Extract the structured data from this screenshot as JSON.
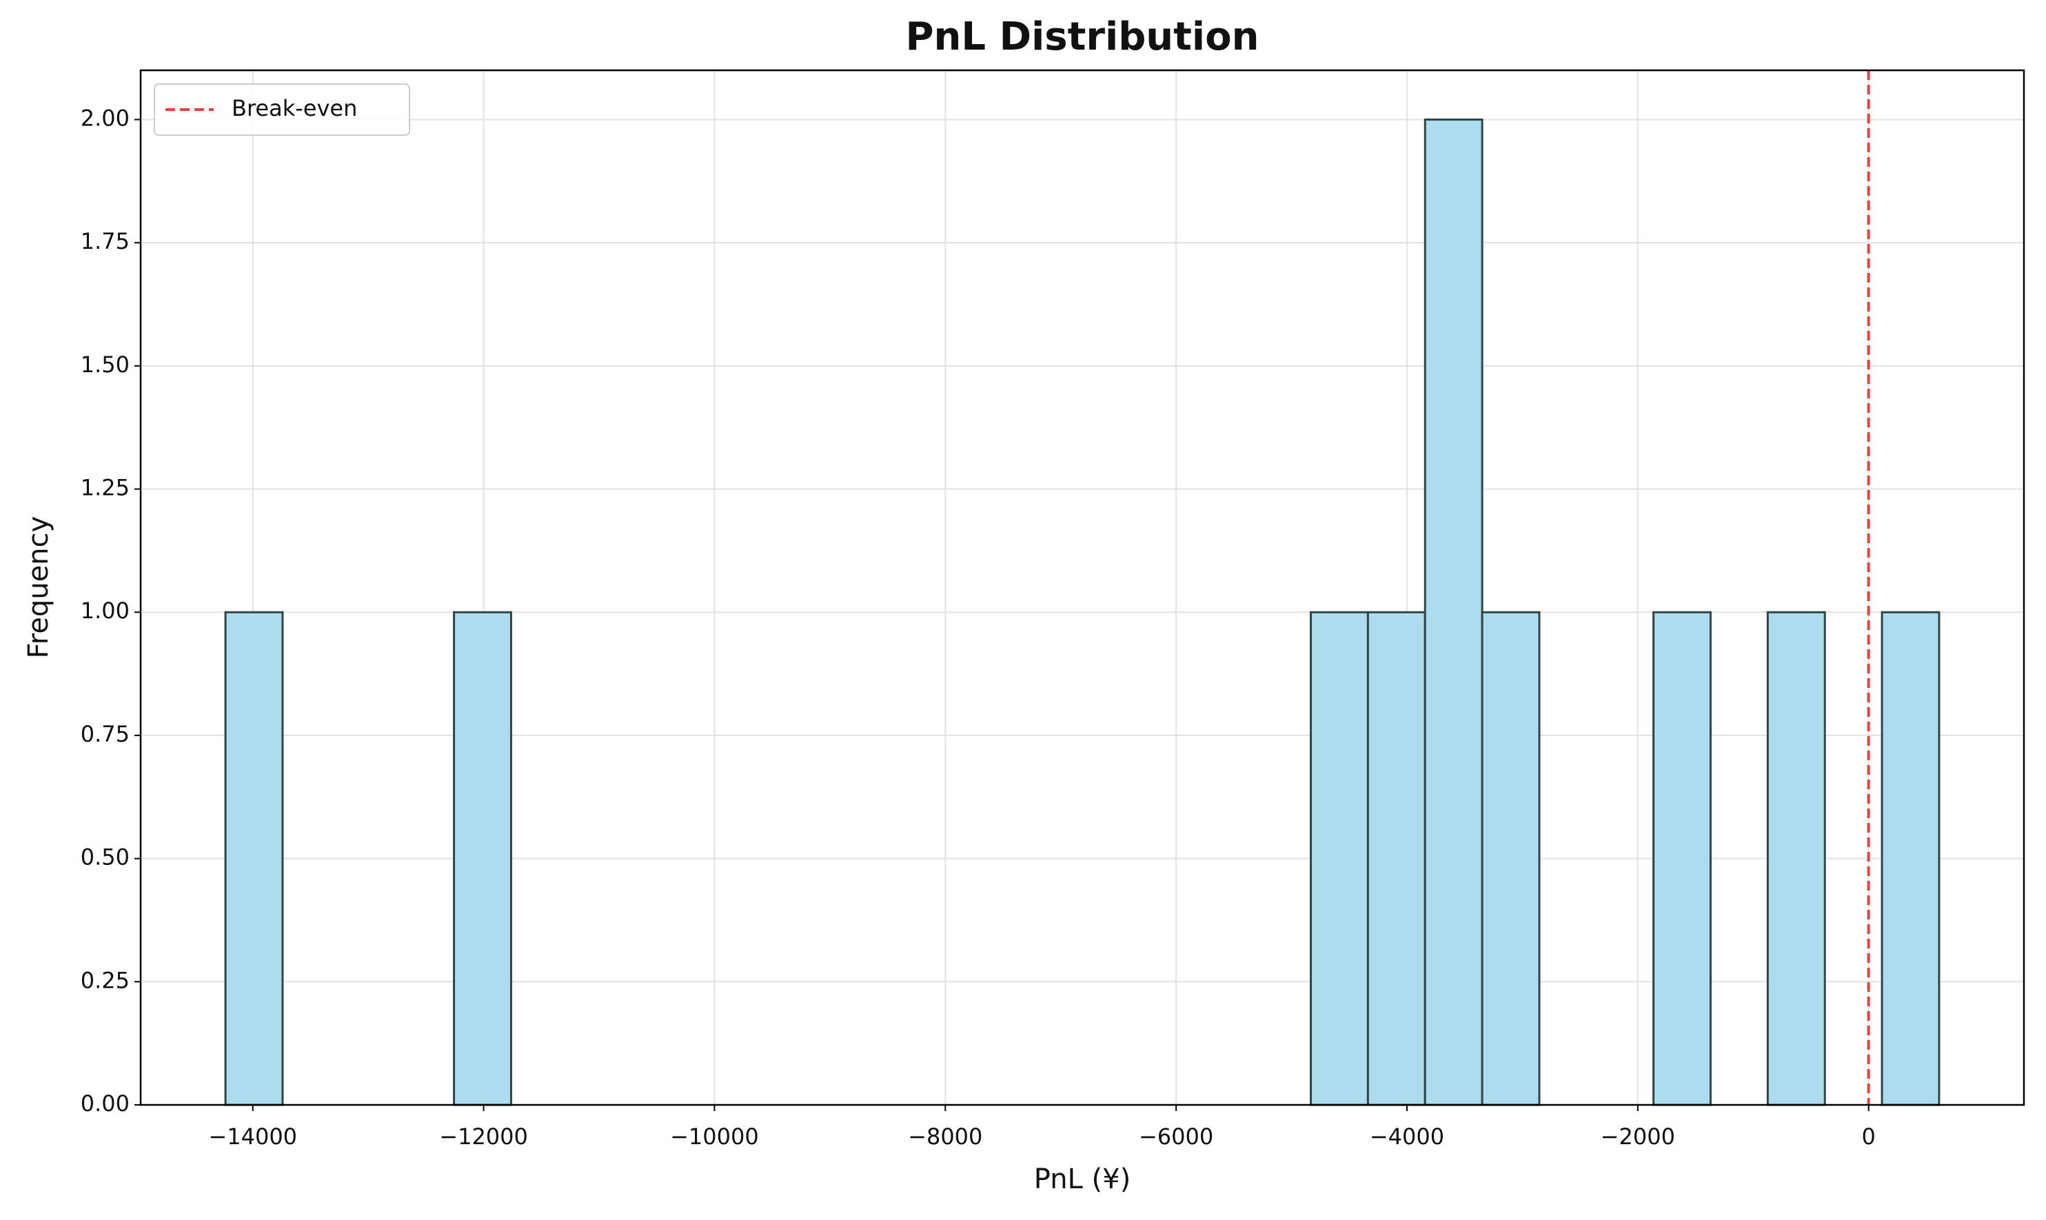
{
  "chart_data": {
    "type": "histogram",
    "title": "PnL Distribution",
    "x_label": "PnL (¥)",
    "y_label": "Frequency",
    "bins": [
      -14237,
      -13742,
      -13247,
      -12752,
      -12257,
      -11762,
      -11267,
      -10772,
      -10277,
      -9782,
      -9288,
      -8793,
      -8298,
      -7803,
      -7308,
      -6813,
      -6318,
      -5823,
      -5328,
      -4833,
      -4338,
      -3843,
      -3348,
      -2853,
      -2358,
      -1864,
      -1369,
      -874,
      -379,
      116,
      611
    ],
    "values": [
      1,
      0,
      0,
      0,
      1,
      0,
      0,
      0,
      0,
      0,
      0,
      0,
      0,
      0,
      0,
      0,
      0,
      0,
      0,
      1,
      1,
      2,
      1,
      0,
      0,
      1,
      0,
      1,
      0,
      1
    ],
    "color": "#acdcee",
    "edgecolor": "#2f4548",
    "vlines": [
      {
        "value": 0,
        "label": "Break-even",
        "color": "#e8413e",
        "style": "dashed"
      }
    ],
    "xlim": [
      -14972,
      1346
    ],
    "ylim": [
      0,
      2.1
    ],
    "xticks": [
      {
        "value": -14000,
        "label": "−14000"
      },
      {
        "value": -12000,
        "label": "−12000"
      },
      {
        "value": -10000,
        "label": "−10000"
      },
      {
        "value": -8000,
        "label": "−8000"
      },
      {
        "value": -6000,
        "label": "−6000"
      },
      {
        "value": -4000,
        "label": "−4000"
      },
      {
        "value": -2000,
        "label": "−2000"
      },
      0
    ],
    "yticks": [
      {
        "value": 0,
        "label": "0.00"
      },
      {
        "value": 0.25,
        "label": "0.25"
      },
      {
        "value": 0.5,
        "label": "0.50"
      },
      {
        "value": 0.75,
        "label": "0.75"
      },
      {
        "value": 1,
        "label": "1.00"
      },
      {
        "value": 1.25,
        "label": "1.25"
      },
      {
        "value": 1.5,
        "label": "1.50"
      },
      {
        "value": 1.75,
        "label": "1.75"
      },
      {
        "value": 2,
        "label": "2.00"
      }
    ],
    "grid": true,
    "legend": "upper left"
  }
}
